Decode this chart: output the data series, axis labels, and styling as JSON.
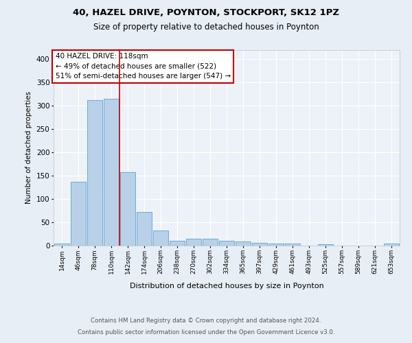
{
  "title1": "40, HAZEL DRIVE, POYNTON, STOCKPORT, SK12 1PZ",
  "title2": "Size of property relative to detached houses in Poynton",
  "xlabel": "Distribution of detached houses by size in Poynton",
  "ylabel": "Number of detached properties",
  "categories": [
    "14sqm",
    "46sqm",
    "78sqm",
    "110sqm",
    "142sqm",
    "174sqm",
    "206sqm",
    "238sqm",
    "270sqm",
    "302sqm",
    "334sqm",
    "365sqm",
    "397sqm",
    "429sqm",
    "461sqm",
    "493sqm",
    "525sqm",
    "557sqm",
    "589sqm",
    "621sqm",
    "653sqm"
  ],
  "values": [
    4,
    137,
    311,
    314,
    157,
    71,
    32,
    10,
    14,
    14,
    10,
    8,
    5,
    3,
    3,
    0,
    2,
    0,
    0,
    0,
    3
  ],
  "bar_color": "#b8d0e8",
  "bar_edge_color": "#6aaad4",
  "vline_x": 3.5,
  "vline_color": "#c00000",
  "annotation_line1": "40 HAZEL DRIVE: 118sqm",
  "annotation_line2": "← 49% of detached houses are smaller (522)",
  "annotation_line3": "51% of semi-detached houses are larger (547) →",
  "annotation_box_color": "white",
  "annotation_box_edge": "#c00000",
  "ylim": [
    0,
    420
  ],
  "yticks": [
    0,
    50,
    100,
    150,
    200,
    250,
    300,
    350,
    400
  ],
  "footer1": "Contains HM Land Registry data © Crown copyright and database right 2024.",
  "footer2": "Contains public sector information licensed under the Open Government Licence v3.0.",
  "bg_color": "#e8eef5",
  "plot_bg_color": "#edf2f8",
  "grid_color": "#ffffff"
}
